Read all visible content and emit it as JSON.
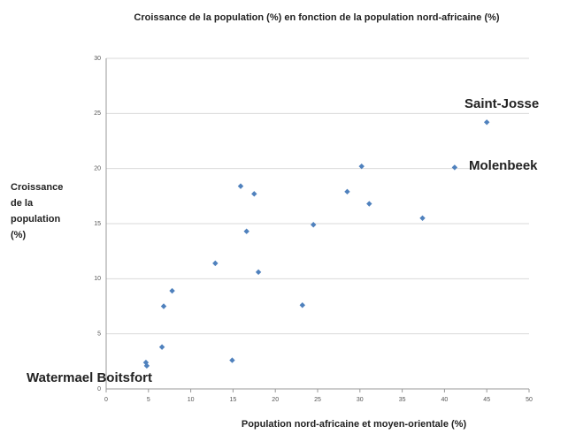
{
  "chart_data": {
    "type": "scatter",
    "title": "Croissance de la population (%) en fonction de la population nord-africaine (%)",
    "xlabel": "Population nord-africaine et moyen-orientale (%)",
    "ylabel": [
      "Croissance",
      "de la",
      "population",
      "(%)"
    ],
    "x": [
      45,
      30.2,
      41.2,
      15.9,
      17.5,
      28.5,
      31.1,
      37.4,
      24.5,
      16.6,
      12.9,
      18.0,
      7.8,
      6.8,
      23.2,
      6.6,
      14.9,
      4.7,
      4.8
    ],
    "y": [
      24.2,
      20.2,
      20.1,
      18.4,
      17.7,
      17.9,
      16.8,
      15.5,
      14.9,
      14.3,
      11.4,
      10.6,
      8.9,
      7.5,
      7.6,
      3.8,
      2.6,
      2.4,
      2.1
    ],
    "color": "#4f81bd",
    "xlim": [
      0,
      50
    ],
    "xticks": [
      0,
      5,
      10,
      15,
      20,
      25,
      30,
      35,
      40,
      45,
      50
    ],
    "ylim": [
      0,
      30
    ],
    "yticks": [
      0,
      5,
      10,
      15,
      20,
      25,
      30
    ],
    "grid": true,
    "annotations": [
      "Saint-Josse",
      "Molenbeek",
      "Watermael Boitsfort"
    ]
  }
}
